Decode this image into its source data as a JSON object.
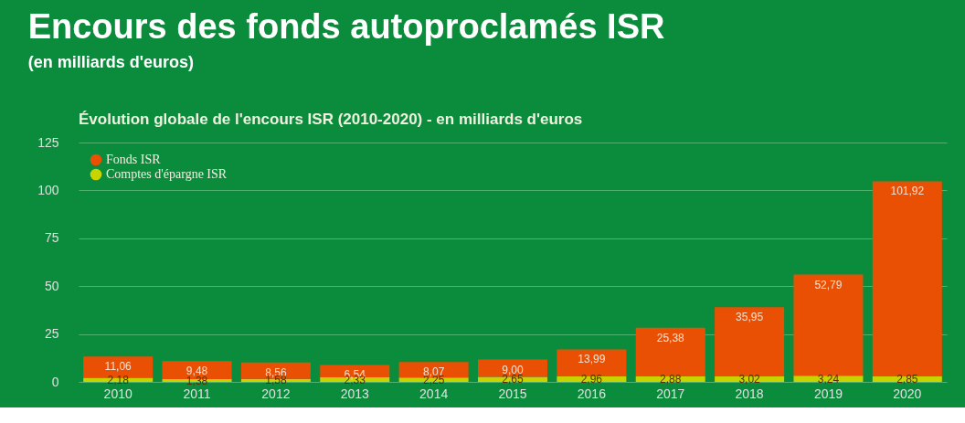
{
  "chart_data": {
    "type": "bar",
    "title": "Encours des fonds autoproclamés ISR",
    "subtitle": "(en milliards d'euros)",
    "annotations": [
      "Évolution globale de l'encours ISR (2010-2020) - en milliards d'euros"
    ],
    "categories": [
      "2010",
      "2011",
      "2012",
      "2013",
      "2014",
      "2015",
      "2016",
      "2017",
      "2018",
      "2019",
      "2020"
    ],
    "stacked": true,
    "series": [
      {
        "name": "Comptes d'épargne ISR",
        "color": "#c8d400",
        "values": [
          2.18,
          1.38,
          1.58,
          2.33,
          2.25,
          2.65,
          2.96,
          2.88,
          3.02,
          3.24,
          2.85
        ],
        "value_labels": [
          "2,18",
          "1,38",
          "1,58",
          "2,33",
          "2,25",
          "2,65",
          "2,96",
          "2,88",
          "3,02",
          "3,24",
          "2,85"
        ]
      },
      {
        "name": "Fonds ISR",
        "color": "#ea5004",
        "values": [
          11.06,
          9.48,
          8.56,
          6.54,
          8.07,
          9.0,
          13.99,
          25.38,
          35.95,
          52.79,
          101.92
        ],
        "value_labels": [
          "11,06",
          "9,48",
          "8,56",
          "6,54",
          "8,07",
          "9,00",
          "13,99",
          "25,38",
          "35,95",
          "52,79",
          "101,92"
        ]
      }
    ],
    "ylim": [
      0,
      125
    ],
    "yticks": [
      0,
      25,
      50,
      75,
      100,
      125
    ],
    "grid": "y",
    "legend": "top left"
  }
}
